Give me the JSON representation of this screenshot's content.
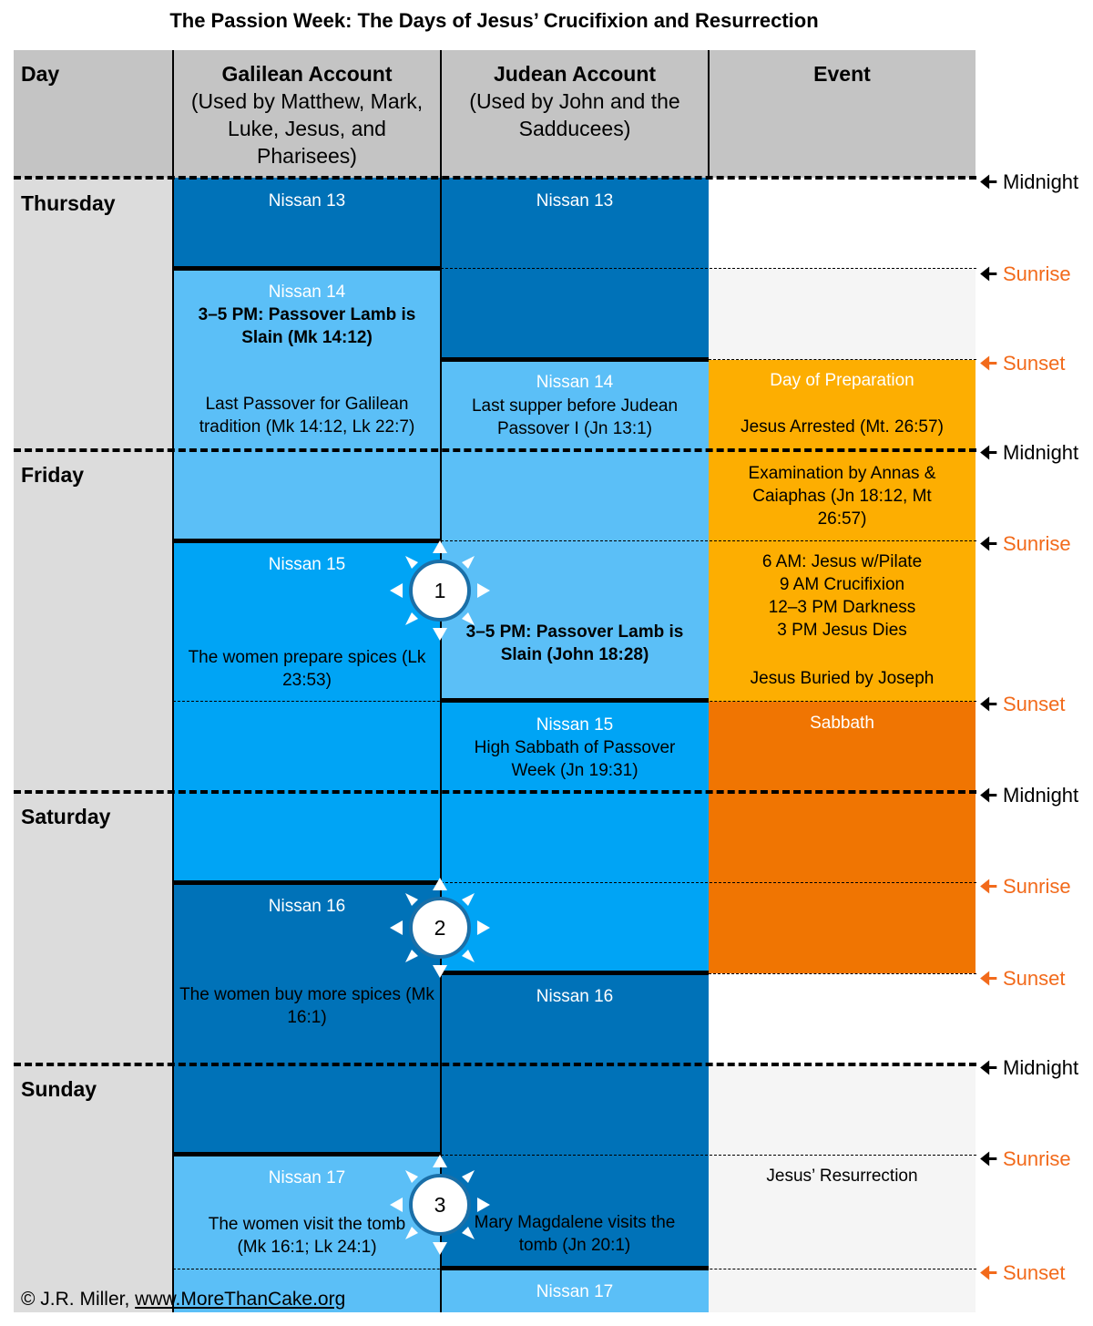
{
  "title": "The Passion Week: The Days of Jesus’ Crucifixion and Resurrection",
  "headers": {
    "day": "Day",
    "galilean_title": "Galilean Account",
    "galilean_sub": "(Used by Matthew, Mark, Luke, Jesus, and Pharisees)",
    "judean_title": "Judean Account",
    "judean_sub": "(Used by John and the Sadducees)",
    "event": "Event"
  },
  "days": [
    "Thursday",
    "Friday",
    "Saturday",
    "Sunday"
  ],
  "markers": {
    "midnight": "Midnight",
    "sunrise": "Sunrise",
    "sunset": "Sunset"
  },
  "galilean": {
    "n13": "Nissan 13",
    "n14": "Nissan 14",
    "lamb": "3–5 PM: Passover Lamb is Slain (Mk 14:12)",
    "last_passover": "Last Passover for Galilean tradition (Mk 14:12, Lk 22:7)",
    "n15": "Nissan 15",
    "spices": "The women prepare spices (Lk 23:53)",
    "n16": "Nissan 16",
    "buy_spices": "The women buy more spices (Mk 16:1)",
    "n17": "Nissan 17",
    "visit_tomb": "The women visit the tomb (Mk 16:1; Lk 24:1)"
  },
  "judean": {
    "n13": "Nissan 13",
    "n14": "Nissan 14",
    "last_supper": "Last supper before Judean Passover I (Jn 13:1)",
    "lamb": "3–5 PM: Passover Lamb is Slain (John 18:28)",
    "n15": "Nissan 15",
    "high_sabbath": "High Sabbath of Passover Week (Jn 19:31)",
    "n16": "Nissan 16",
    "mary": "Mary Magdalene visits the tomb (Jn 20:1)",
    "n17": "Nissan 17"
  },
  "events": {
    "preparation": "Day of Preparation",
    "arrested": "Jesus Arrested (Mt. 26:57)",
    "examination": "Examination by Annas & Caiaphas (Jn 18:12, Mt 26:57)",
    "crucifixion": [
      "6 AM: Jesus w/Pilate",
      "9 AM Crucifixion",
      "12–3 PM Darkness",
      "3 PM Jesus Dies"
    ],
    "buried": "Jesus Buried by Joseph",
    "sabbath": "Sabbath",
    "resurrection": "Jesus’ Resurrection"
  },
  "days_count": [
    "1",
    "2",
    "3"
  ],
  "colors": {
    "dark_blue": "#0072b8",
    "light_blue": "#5bbff7",
    "mid_blue": "#00a4f5",
    "light_orange": "#fdae01",
    "dark_orange": "#f07502",
    "sunset_marker": "#f26a1b"
  },
  "credit": {
    "prefix": "© J.R. Miller, ",
    "site": "www.MoreThanCake.org"
  }
}
